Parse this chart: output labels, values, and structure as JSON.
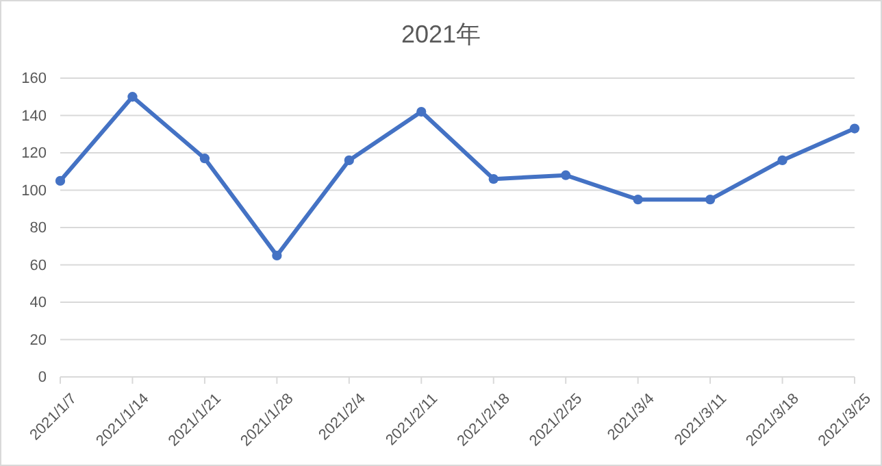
{
  "chart_data": {
    "type": "line",
    "title": "2021年",
    "categories": [
      "2021/1/7",
      "2021/1/14",
      "2021/1/21",
      "2021/1/28",
      "2021/2/4",
      "2021/2/11",
      "2021/2/18",
      "2021/2/25",
      "2021/3/4",
      "2021/3/11",
      "2021/3/18",
      "2021/3/25"
    ],
    "series": [
      {
        "color": "#4472c4",
        "values": [
          105,
          150,
          117,
          65,
          116,
          142,
          106,
          108,
          95,
          95,
          116,
          133
        ]
      }
    ],
    "ylim": [
      0,
      160
    ],
    "yticks": [
      0,
      20,
      40,
      60,
      80,
      100,
      120,
      140,
      160
    ],
    "grid": "y",
    "marker": "circle",
    "line_style": "solid"
  }
}
